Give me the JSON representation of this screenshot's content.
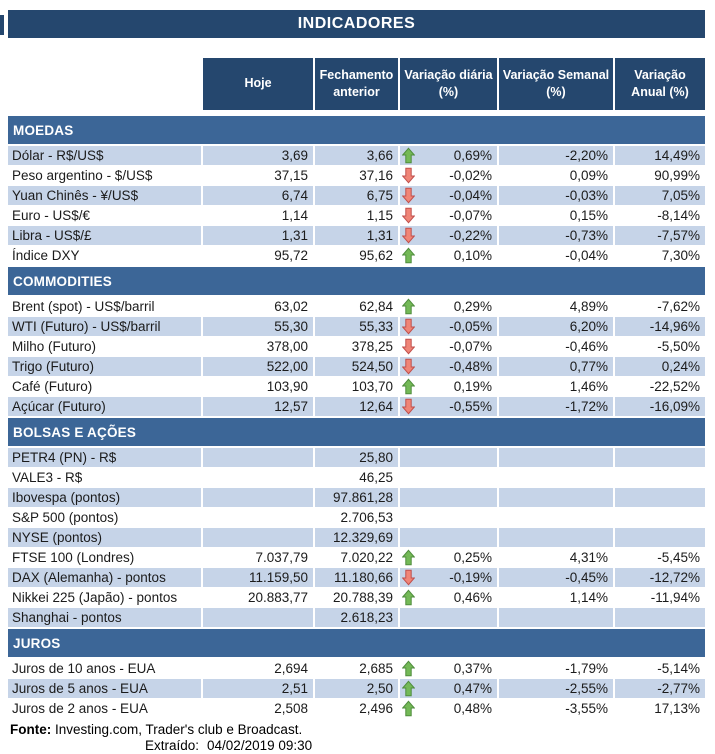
{
  "title": "INDICADORES",
  "columns": [
    "Hoje",
    "Fechamento anterior",
    "Variação diária (%)",
    "Variação Semanal (%)",
    "Variação Anual (%)"
  ],
  "colors": {
    "header_bg": "#25476E",
    "section_bg": "#3C6697",
    "stripe_bg": "#C6D4E8",
    "arrow_up_fill": "#74B957",
    "arrow_up_stroke": "#4F8D3D",
    "arrow_down_fill": "#F08577",
    "arrow_down_stroke": "#C0504D"
  },
  "sections": [
    {
      "name": "MOEDAS",
      "rows": [
        {
          "label": "Dólar - R$/US$",
          "hoje": "3,69",
          "fechamento": "3,66",
          "arrow": "up",
          "var_diaria": "0,69%",
          "var_semanal": "-2,20%",
          "var_anual": "14,49%",
          "striped": true
        },
        {
          "label": "Peso argentino - $/US$",
          "hoje": "37,15",
          "fechamento": "37,16",
          "arrow": "down",
          "var_diaria": "-0,02%",
          "var_semanal": "0,09%",
          "var_anual": "90,99%",
          "striped": false
        },
        {
          "label": "Yuan Chinês - ¥/US$",
          "hoje": "6,74",
          "fechamento": "6,75",
          "arrow": "down",
          "var_diaria": "-0,04%",
          "var_semanal": "-0,03%",
          "var_anual": "7,05%",
          "striped": true
        },
        {
          "label": "Euro - US$/€",
          "hoje": "1,14",
          "fechamento": "1,15",
          "arrow": "down",
          "var_diaria": "-0,07%",
          "var_semanal": "0,15%",
          "var_anual": "-8,14%",
          "striped": false
        },
        {
          "label": "Libra - US$/£",
          "hoje": "1,31",
          "fechamento": "1,31",
          "arrow": "down",
          "var_diaria": "-0,22%",
          "var_semanal": "-0,73%",
          "var_anual": "-7,57%",
          "striped": true
        },
        {
          "label": "Índice DXY",
          "hoje": "95,72",
          "fechamento": "95,62",
          "arrow": "up",
          "var_diaria": "0,10%",
          "var_semanal": "-0,04%",
          "var_anual": "7,30%",
          "striped": false
        }
      ]
    },
    {
      "name": "COMMODITIES",
      "rows": [
        {
          "label": "Brent (spot) - US$/barril",
          "hoje": "63,02",
          "fechamento": "62,84",
          "arrow": "up",
          "var_diaria": "0,29%",
          "var_semanal": "4,89%",
          "var_anual": "-7,62%",
          "striped": false
        },
        {
          "label": "WTI (Futuro) - US$/barril",
          "hoje": "55,30",
          "fechamento": "55,33",
          "arrow": "down",
          "var_diaria": "-0,05%",
          "var_semanal": "6,20%",
          "var_anual": "-14,96%",
          "striped": true
        },
        {
          "label": "Milho (Futuro)",
          "hoje": "378,00",
          "fechamento": "378,25",
          "arrow": "down",
          "var_diaria": "-0,07%",
          "var_semanal": "-0,46%",
          "var_anual": "-5,50%",
          "striped": false
        },
        {
          "label": "Trigo (Futuro)",
          "hoje": "522,00",
          "fechamento": "524,50",
          "arrow": "down",
          "var_diaria": "-0,48%",
          "var_semanal": "0,77%",
          "var_anual": "0,24%",
          "striped": true
        },
        {
          "label": "Café (Futuro)",
          "hoje": "103,90",
          "fechamento": "103,70",
          "arrow": "up",
          "var_diaria": "0,19%",
          "var_semanal": "1,46%",
          "var_anual": "-22,52%",
          "striped": false
        },
        {
          "label": "Açúcar (Futuro)",
          "hoje": "12,57",
          "fechamento": "12,64",
          "arrow": "down",
          "var_diaria": "-0,55%",
          "var_semanal": "-1,72%",
          "var_anual": "-16,09%",
          "striped": true
        }
      ]
    },
    {
      "name": "BOLSAS E AÇÕES",
      "rows": [
        {
          "label": "PETR4 (PN) - R$",
          "hoje": "",
          "fechamento": "25,80",
          "arrow": "none",
          "var_diaria": "",
          "var_semanal": "",
          "var_anual": "",
          "striped": true
        },
        {
          "label": "VALE3 - R$",
          "hoje": "",
          "fechamento": "46,25",
          "arrow": "none",
          "var_diaria": "",
          "var_semanal": "",
          "var_anual": "",
          "striped": false
        },
        {
          "label": "Ibovespa (pontos)",
          "hoje": "",
          "fechamento": "97.861,28",
          "arrow": "none",
          "var_diaria": "",
          "var_semanal": "",
          "var_anual": "",
          "striped": true
        },
        {
          "label": "S&P 500 (pontos)",
          "hoje": "",
          "fechamento": "2.706,53",
          "arrow": "none",
          "var_diaria": "",
          "var_semanal": "",
          "var_anual": "",
          "striped": false
        },
        {
          "label": "NYSE (pontos)",
          "hoje": "",
          "fechamento": "12.329,69",
          "arrow": "none",
          "var_diaria": "",
          "var_semanal": "",
          "var_anual": "",
          "striped": true
        },
        {
          "label": "FTSE 100 (Londres)",
          "hoje": "7.037,79",
          "fechamento": "7.020,22",
          "arrow": "up",
          "var_diaria": "0,25%",
          "var_semanal": "4,31%",
          "var_anual": "-5,45%",
          "striped": false
        },
        {
          "label": "DAX (Alemanha) - pontos",
          "hoje": "11.159,50",
          "fechamento": "11.180,66",
          "arrow": "down",
          "var_diaria": "-0,19%",
          "var_semanal": "-0,45%",
          "var_anual": "-12,72%",
          "striped": true
        },
        {
          "label": "Nikkei 225 (Japão) - pontos",
          "hoje": "20.883,77",
          "fechamento": "20.788,39",
          "arrow": "up",
          "var_diaria": "0,46%",
          "var_semanal": "1,14%",
          "var_anual": "-11,94%",
          "striped": false
        },
        {
          "label": "Shanghai - pontos",
          "hoje": "",
          "fechamento": "2.618,23",
          "arrow": "none",
          "var_diaria": "",
          "var_semanal": "",
          "var_anual": "",
          "striped": true
        }
      ]
    },
    {
      "name": "JUROS",
      "rows": [
        {
          "label": "Juros de 10 anos - EUA",
          "hoje": "2,694",
          "fechamento": "2,685",
          "arrow": "up",
          "var_diaria": "0,37%",
          "var_semanal": "-1,79%",
          "var_anual": "-5,14%",
          "striped": false
        },
        {
          "label": "Juros de 5 anos - EUA",
          "hoje": "2,51",
          "fechamento": "2,50",
          "arrow": "up",
          "var_diaria": "0,47%",
          "var_semanal": "-2,55%",
          "var_anual": "-2,77%",
          "striped": true
        },
        {
          "label": "Juros de 2 anos - EUA",
          "hoje": "2,508",
          "fechamento": "2,496",
          "arrow": "up",
          "var_diaria": "0,48%",
          "var_semanal": "-3,55%",
          "var_anual": "17,13%",
          "striped": false
        }
      ]
    }
  ],
  "footer": {
    "fonte_label": "Fonte:",
    "fonte_text": " Investing.com, Trader's club e Broadcast.",
    "extraido_label": "Extraído:",
    "extraido_value": "04/02/2019 09:30"
  }
}
